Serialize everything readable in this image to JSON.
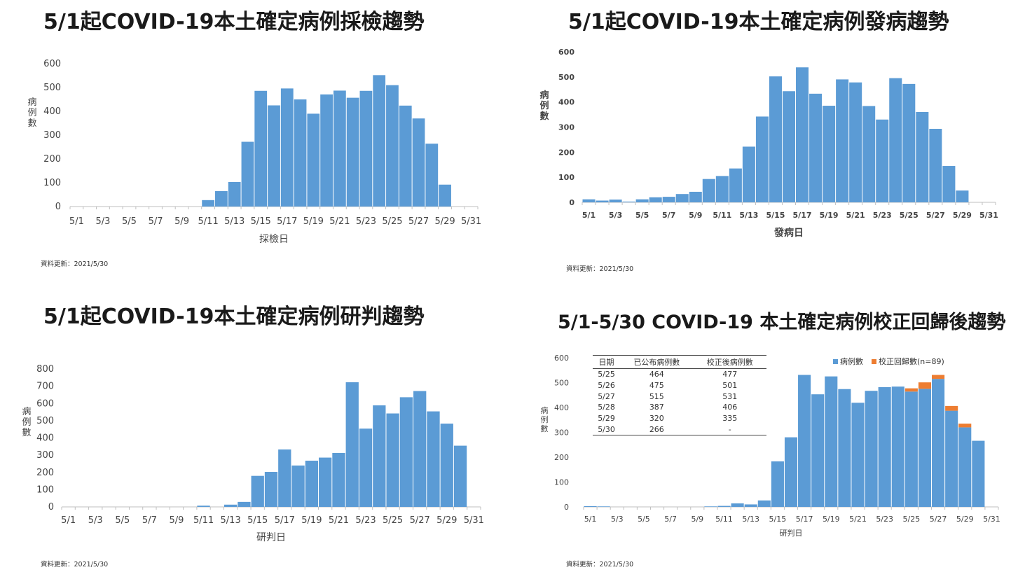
{
  "panels": {
    "p1": {
      "title": "5/1起COVID-19本土確定病例採檢趨勢",
      "updated": "資料更新：2021/5/30"
    },
    "p2": {
      "title": "5/1起COVID-19本土確定病例發病趨勢",
      "updated": "資料更新：2021/5/30"
    },
    "p3": {
      "title": "5/1起COVID-19本土確定病例研判趨勢",
      "updated": "資料更新：2021/5/30"
    },
    "p4": {
      "title": "5/1-5/30 COVID-19 本土確定病例校正回歸後趨勢",
      "updated": "資料更新：2021/5/30",
      "legend": [
        {
          "label": "病例數",
          "color": "#5B9BD5"
        },
        {
          "label": "校正回歸數(n=89)",
          "color": "#ED7D31"
        }
      ],
      "table": {
        "headers": [
          "日期",
          "已公布病例數",
          "校正後病例數"
        ],
        "rows": [
          [
            "5/25",
            "464",
            "477"
          ],
          [
            "5/26",
            "475",
            "501"
          ],
          [
            "5/27",
            "515",
            "531"
          ],
          [
            "5/28",
            "387",
            "406"
          ],
          [
            "5/29",
            "320",
            "335"
          ],
          [
            "5/30",
            "266",
            "-"
          ]
        ]
      }
    }
  },
  "chart_data": [
    {
      "type": "bar",
      "title": "5/1起COVID-19本土確定病例採檢趨勢",
      "xlabel": "採檢日",
      "ylabel": "病例數",
      "ylim": [
        0,
        600
      ],
      "yticks": [
        0,
        100,
        200,
        300,
        400,
        500,
        600
      ],
      "categories": [
        "5/1",
        "5/2",
        "5/3",
        "5/4",
        "5/5",
        "5/6",
        "5/7",
        "5/8",
        "5/9",
        "5/10",
        "5/11",
        "5/12",
        "5/13",
        "5/14",
        "5/15",
        "5/16",
        "5/17",
        "5/18",
        "5/19",
        "5/20",
        "5/21",
        "5/22",
        "5/23",
        "5/24",
        "5/25",
        "5/26",
        "5/27",
        "5/28",
        "5/29",
        "5/30",
        "5/31"
      ],
      "tick_labels": [
        "5/1",
        "5/3",
        "5/5",
        "5/7",
        "5/9",
        "5/11",
        "5/13",
        "5/15",
        "5/17",
        "5/19",
        "5/21",
        "5/23",
        "5/25",
        "5/27",
        "5/29",
        "5/31"
      ],
      "values": [
        0,
        0,
        0,
        0,
        0,
        0,
        0,
        0,
        0,
        0,
        27,
        65,
        103,
        272,
        486,
        425,
        496,
        450,
        390,
        471,
        487,
        457,
        486,
        552,
        510,
        424,
        370,
        264,
        92,
        0,
        0
      ],
      "color": "#5B9BD5"
    },
    {
      "type": "bar",
      "title": "5/1起COVID-19本土確定病例發病趨勢",
      "xlabel": "發病日",
      "ylabel": "病例數",
      "ylim": [
        0,
        600
      ],
      "yticks": [
        0,
        100,
        200,
        300,
        400,
        500,
        600
      ],
      "categories": [
        "5/1",
        "5/2",
        "5/3",
        "5/4",
        "5/5",
        "5/6",
        "5/7",
        "5/8",
        "5/9",
        "5/10",
        "5/11",
        "5/12",
        "5/13",
        "5/14",
        "5/15",
        "5/16",
        "5/17",
        "5/18",
        "5/19",
        "5/20",
        "5/21",
        "5/22",
        "5/23",
        "5/24",
        "5/25",
        "5/26",
        "5/27",
        "5/28",
        "5/29",
        "5/30",
        "5/31"
      ],
      "tick_labels": [
        "5/1",
        "5/3",
        "5/5",
        "5/7",
        "5/9",
        "5/11",
        "5/13",
        "5/15",
        "5/17",
        "5/19",
        "5/21",
        "5/23",
        "5/25",
        "5/27",
        "5/29",
        "5/31"
      ],
      "values": [
        12,
        7,
        11,
        3,
        12,
        20,
        22,
        33,
        42,
        93,
        105,
        135,
        222,
        342,
        502,
        443,
        538,
        433,
        385,
        490,
        478,
        384,
        330,
        495,
        472,
        360,
        293,
        145,
        47,
        0,
        0
      ],
      "color": "#5B9BD5"
    },
    {
      "type": "bar",
      "title": "5/1起COVID-19本土確定病例研判趨勢",
      "xlabel": "研判日",
      "ylabel": "病例數",
      "ylim": [
        0,
        800
      ],
      "yticks": [
        0,
        100,
        200,
        300,
        400,
        500,
        600,
        700,
        800
      ],
      "categories": [
        "5/1",
        "5/2",
        "5/3",
        "5/4",
        "5/5",
        "5/6",
        "5/7",
        "5/8",
        "5/9",
        "5/10",
        "5/11",
        "5/12",
        "5/13",
        "5/14",
        "5/15",
        "5/16",
        "5/17",
        "5/18",
        "5/19",
        "5/20",
        "5/21",
        "5/22",
        "5/23",
        "5/24",
        "5/25",
        "5/26",
        "5/27",
        "5/28",
        "5/29",
        "5/30",
        "5/31"
      ],
      "tick_labels": [
        "5/1",
        "5/3",
        "5/5",
        "5/7",
        "5/9",
        "5/11",
        "5/13",
        "5/15",
        "5/17",
        "5/19",
        "5/21",
        "5/23",
        "5/25",
        "5/27",
        "5/29",
        "5/31"
      ],
      "values": [
        0,
        0,
        0,
        0,
        0,
        0,
        0,
        0,
        0,
        0,
        7,
        0,
        13,
        29,
        180,
        203,
        333,
        240,
        268,
        286,
        313,
        723,
        454,
        589,
        542,
        636,
        672,
        554,
        483,
        355,
        0
      ],
      "color": "#5B9BD5"
    },
    {
      "type": "bar",
      "title": "5/1-5/30 COVID-19 本土確定病例校正回歸後趨勢",
      "xlabel": "研判日",
      "ylabel": "病例數",
      "ylim": [
        0,
        600
      ],
      "yticks": [
        0,
        100,
        200,
        300,
        400,
        500,
        600
      ],
      "stacked": true,
      "categories": [
        "5/1",
        "5/2",
        "5/3",
        "5/4",
        "5/5",
        "5/6",
        "5/7",
        "5/8",
        "5/9",
        "5/10",
        "5/11",
        "5/12",
        "5/13",
        "5/14",
        "5/15",
        "5/16",
        "5/17",
        "5/18",
        "5/19",
        "5/20",
        "5/21",
        "5/22",
        "5/23",
        "5/24",
        "5/25",
        "5/26",
        "5/27",
        "5/28",
        "5/29",
        "5/30",
        "5/31"
      ],
      "tick_labels": [
        "5/1",
        "5/3",
        "5/5",
        "5/7",
        "5/9",
        "5/11",
        "5/13",
        "5/15",
        "5/17",
        "5/19",
        "5/21",
        "5/23",
        "5/25",
        "5/27",
        "5/29",
        "5/31"
      ],
      "series": [
        {
          "name": "病例數",
          "color": "#5B9BD5",
          "values": [
            3,
            2,
            0,
            0,
            0,
            0,
            0,
            0,
            0,
            2,
            4,
            14,
            10,
            26,
            183,
            280,
            531,
            453,
            525,
            474,
            419,
            467,
            482,
            484,
            464,
            475,
            515,
            387,
            320,
            266,
            0
          ]
        },
        {
          "name": "校正回歸數(n=89)",
          "color": "#ED7D31",
          "values": [
            0,
            0,
            0,
            0,
            0,
            0,
            0,
            0,
            0,
            0,
            0,
            0,
            0,
            0,
            0,
            0,
            0,
            0,
            0,
            0,
            0,
            0,
            0,
            0,
            13,
            26,
            16,
            19,
            15,
            0,
            0
          ]
        }
      ]
    }
  ]
}
